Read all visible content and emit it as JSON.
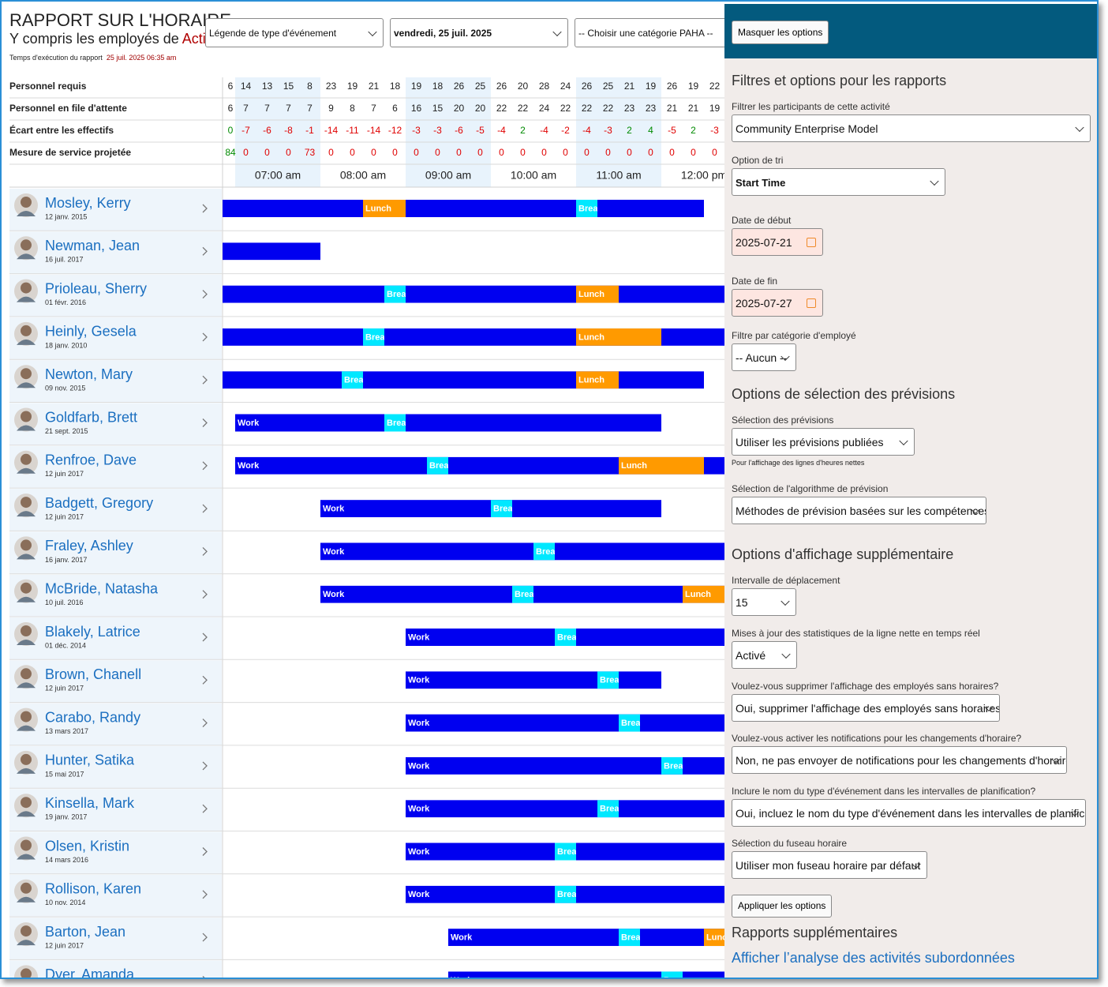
{
  "header": {
    "title": "RAPPORT SUR L'HORAIRE",
    "subtitle": "Y compris les employés de ",
    "subtitle_highlight": "Acti",
    "run_time_label": "Temps d'exécution du rapport",
    "run_time": "25 juil. 2025 06:35 am"
  },
  "toolbar": {
    "event_legend": "Légende de type d'événement",
    "date": "vendredi, 25 juil. 2025",
    "category": "-- Choisir une catégorie PAHA --"
  },
  "stats": {
    "rows": [
      {
        "label": "Personnel requis",
        "values": [
          6,
          14,
          13,
          15,
          8,
          23,
          19,
          21,
          18,
          19,
          18,
          26,
          25,
          26,
          20,
          28,
          24,
          26,
          25,
          21,
          19,
          26,
          19,
          22
        ]
      },
      {
        "label": "Personnel en file d'attente",
        "values": [
          6,
          7,
          7,
          7,
          7,
          9,
          8,
          7,
          6,
          16,
          15,
          20,
          20,
          22,
          22,
          24,
          22,
          22,
          22,
          23,
          23,
          21,
          21,
          19
        ]
      },
      {
        "label": "Écart entre les effectifs",
        "values": [
          0,
          -7,
          -6,
          -8,
          -1,
          -14,
          -11,
          -14,
          -12,
          -3,
          -3,
          -6,
          -5,
          -4,
          2,
          -4,
          -2,
          -4,
          -3,
          2,
          4,
          -5,
          2,
          -3
        ]
      },
      {
        "label": "Mesure de service projetée",
        "values": [
          84,
          0,
          0,
          0,
          73,
          0,
          0,
          0,
          0,
          0,
          0,
          0,
          0,
          0,
          0,
          0,
          0,
          0,
          0,
          0,
          0,
          0,
          0,
          0
        ]
      }
    ]
  },
  "timeline": {
    "ticks": [
      {
        "value": 7,
        "label": "07:00 am"
      },
      {
        "value": 8,
        "label": "08:00 am"
      },
      {
        "value": 9,
        "label": "09:00 am"
      },
      {
        "value": 10,
        "label": "10:00 am"
      },
      {
        "value": 11,
        "label": "11:00 am"
      },
      {
        "value": 12,
        "label": "12:00 pm"
      }
    ],
    "event_colors": {
      "Work": "#0000f0",
      "Lunch": "#ff9a00",
      "Break": "#00e8ff"
    }
  },
  "employees": [
    {
      "name": "Mosley, Kerry",
      "date": "12 janv. 2015",
      "events": [
        {
          "label": "Work",
          "start": 6.5,
          "end": 12.5
        },
        {
          "label": "Lunch",
          "start": 8.5,
          "end": 9
        },
        {
          "label": "Break",
          "start": 11,
          "end": 11.25
        }
      ]
    },
    {
      "name": "Newman, Jean",
      "date": "16 juil. 2017",
      "events": [
        {
          "label": "Work",
          "start": 6.5,
          "end": 8
        }
      ]
    },
    {
      "name": "Prioleau, Sherry",
      "date": "01 févr. 2016",
      "events": [
        {
          "label": "Work",
          "start": 6.5,
          "end": 13.5
        },
        {
          "label": "Break",
          "start": 8.75,
          "end": 9
        },
        {
          "label": "Lunch",
          "start": 11,
          "end": 11.5
        }
      ]
    },
    {
      "name": "Heinly, Gesela",
      "date": "18 janv. 2010",
      "events": [
        {
          "label": "Work",
          "start": 6.5,
          "end": 13.5
        },
        {
          "label": "Break",
          "start": 8.5,
          "end": 8.75
        },
        {
          "label": "Lunch",
          "start": 11,
          "end": 12
        }
      ]
    },
    {
      "name": "Newton, Mary",
      "date": "09 nov. 2015",
      "events": [
        {
          "label": "Work",
          "start": 6.5,
          "end": 12.5
        },
        {
          "label": "Break",
          "start": 8.25,
          "end": 8.5
        },
        {
          "label": "Lunch",
          "start": 11,
          "end": 11.5
        }
      ]
    },
    {
      "name": "Goldfarb, Brett",
      "date": "21 sept. 2015",
      "events": [
        {
          "label": "Work",
          "start": 7,
          "end": 12
        },
        {
          "label": "Break",
          "start": 8.75,
          "end": 9
        }
      ]
    },
    {
      "name": "Renfroe, Dave",
      "date": "12 juin 2017",
      "events": [
        {
          "label": "Work",
          "start": 7,
          "end": 13.5
        },
        {
          "label": "Break",
          "start": 9.25,
          "end": 9.5
        },
        {
          "label": "Lunch",
          "start": 11.5,
          "end": 12.5
        }
      ]
    },
    {
      "name": "Badgett, Gregory",
      "date": "12 juin 2017",
      "events": [
        {
          "label": "Work",
          "start": 8,
          "end": 12
        },
        {
          "label": "Break",
          "start": 10,
          "end": 10.25
        }
      ]
    },
    {
      "name": "Fraley, Ashley",
      "date": "16 janv. 2017",
      "events": [
        {
          "label": "Work",
          "start": 8,
          "end": 13.5
        },
        {
          "label": "Break",
          "start": 10.5,
          "end": 10.75
        }
      ]
    },
    {
      "name": "McBride, Natasha",
      "date": "10 juil. 2016",
      "events": [
        {
          "label": "Work",
          "start": 8,
          "end": 13.5
        },
        {
          "label": "Break",
          "start": 10.25,
          "end": 10.5
        },
        {
          "label": "Lunch",
          "start": 12.25,
          "end": 13
        }
      ]
    },
    {
      "name": "Blakely, Latrice",
      "date": "01 déc. 2014",
      "events": [
        {
          "label": "Work",
          "start": 9,
          "end": 13.5
        },
        {
          "label": "Break",
          "start": 10.75,
          "end": 11
        }
      ]
    },
    {
      "name": "Brown, Chanell",
      "date": "12 juin 2017",
      "events": [
        {
          "label": "Work",
          "start": 9,
          "end": 12
        },
        {
          "label": "Break",
          "start": 11.25,
          "end": 11.5
        }
      ]
    },
    {
      "name": "Carabo, Randy",
      "date": "13 mars 2017",
      "events": [
        {
          "label": "Work",
          "start": 9,
          "end": 13.5
        },
        {
          "label": "Break",
          "start": 11.5,
          "end": 11.75
        }
      ]
    },
    {
      "name": "Hunter, Satika",
      "date": "15 mai 2017",
      "events": [
        {
          "label": "Work",
          "start": 9,
          "end": 13.5
        },
        {
          "label": "Break",
          "start": 12,
          "end": 12.25
        }
      ]
    },
    {
      "name": "Kinsella, Mark",
      "date": "19 janv. 2017",
      "events": [
        {
          "label": "Work",
          "start": 9,
          "end": 13.5
        },
        {
          "label": "Break",
          "start": 11.25,
          "end": 11.5
        }
      ]
    },
    {
      "name": "Olsen, Kristin",
      "date": "14 mars 2016",
      "events": [
        {
          "label": "Work",
          "start": 9,
          "end": 13.5
        },
        {
          "label": "Break",
          "start": 10.75,
          "end": 11
        }
      ]
    },
    {
      "name": "Rollison, Karen",
      "date": "10 nov. 2014",
      "events": [
        {
          "label": "Work",
          "start": 9,
          "end": 13.5
        },
        {
          "label": "Break",
          "start": 10.75,
          "end": 11
        }
      ]
    },
    {
      "name": "Barton, Jean",
      "date": "12 juin 2017",
      "events": [
        {
          "label": "Work",
          "start": 9.5,
          "end": 13.5
        },
        {
          "label": "Break",
          "start": 11.5,
          "end": 11.75
        },
        {
          "label": "Lunch",
          "start": 12.5,
          "end": 13
        }
      ]
    },
    {
      "name": "Dyer, Amanda",
      "events": [
        {
          "label": "Work",
          "start": 9.5,
          "end": 13.5
        },
        {
          "label": "Break",
          "start": 12,
          "end": 12.25
        }
      ]
    }
  ],
  "options_panel": {
    "hide_button": "Masquer les options",
    "sections": [
      {
        "heading": "Filtres et options pour les rapports",
        "fields": [
          {
            "label": "Filtrer les participants de cette activité",
            "value": "Community Enterprise Model"
          },
          {
            "label": "Option de tri",
            "value": "Start Time"
          },
          {
            "label": "Date de début",
            "value": "2025-07-21"
          },
          {
            "label": "Date de fin",
            "value": "2025-07-27"
          },
          {
            "label": "Filtre par catégorie d'employé",
            "value": "-- Aucun --"
          }
        ]
      },
      {
        "heading": "Options de sélection des prévisions",
        "fields": [
          {
            "label": "Sélection des prévisions",
            "value": "Utiliser les prévisions publiées",
            "note": "Pour l'affichage des lignes d'heures nettes"
          },
          {
            "label": "Sélection de l'algorithme de prévision",
            "value": "Méthodes de prévision basées sur les compétences"
          }
        ]
      },
      {
        "heading": "Options d'affichage supplémentaire",
        "fields": [
          {
            "label": "Intervalle de déplacement",
            "value": "15"
          },
          {
            "label": "Mises à jour des statistiques de la ligne nette en temps réel",
            "value": "Activé"
          },
          {
            "label": "Voulez-vous supprimer l'affichage des employés sans horaires?",
            "value": "Oui, supprimer l'affichage des employés sans horaires."
          },
          {
            "label": "Voulez-vous activer les notifications pour les changements d'horaire?",
            "value": "Non, ne pas envoyer de notifications pour les changements d'horaire."
          },
          {
            "label": "Inclure le nom du type d'événement dans les intervalles de planification?",
            "value": "Oui, incluez le nom du type d'événement dans les intervalles de planification."
          },
          {
            "label": "Sélection du fuseau horaire",
            "value": "Utiliser mon fuseau horaire par défaut"
          }
        ]
      }
    ],
    "apply_button": "Appliquer les options",
    "extra_reports": {
      "heading": "Rapports supplémentaires",
      "link": "Afficher l’analyse des activités subordonnées"
    }
  }
}
